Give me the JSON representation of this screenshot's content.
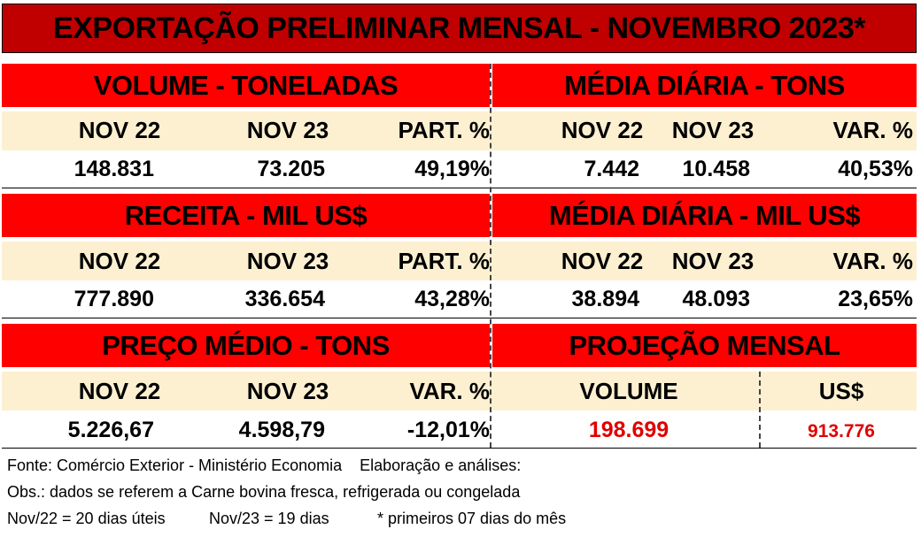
{
  "title": "EXPORTAÇÃO PRELIMINAR MENSAL  - NOVEMBRO 2023*",
  "sections": [
    {
      "left": {
        "heading": "VOLUME - TONELADAS",
        "headers": [
          "NOV 22",
          "NOV 23",
          "PART. %"
        ],
        "values": [
          "148.831",
          "73.205",
          "49,19%"
        ]
      },
      "right": {
        "heading": "MÉDIA DIÁRIA - TONS",
        "headers": [
          "NOV 22",
          "NOV 23",
          "VAR. %"
        ],
        "values": [
          "7.442",
          "10.458",
          "40,53%"
        ]
      }
    },
    {
      "left": {
        "heading": "RECEITA - MIL US$",
        "headers": [
          "NOV 22",
          "NOV 23",
          "PART. %"
        ],
        "values": [
          "777.890",
          "336.654",
          "43,28%"
        ]
      },
      "right": {
        "heading": "MÉDIA DIÁRIA - MIL US$",
        "headers": [
          "NOV 22",
          "NOV 23",
          "VAR. %"
        ],
        "values": [
          "38.894",
          "48.093",
          "23,65%"
        ]
      }
    },
    {
      "left": {
        "heading": "PREÇO MÉDIO - TONS",
        "headers": [
          "NOV 22",
          "NOV 23",
          "VAR. %"
        ],
        "values": [
          "5.226,67",
          "4.598,79",
          "-12,01%"
        ]
      },
      "right": {
        "heading": "PROJEÇÃO  MENSAL",
        "headers": [
          "VOLUME",
          "US$"
        ],
        "values": [
          "198.699",
          "913.776"
        ]
      }
    }
  ],
  "footer": {
    "line1": "Fonte: Comércio Exterior - Ministério Economia    Elaboração e análises:",
    "line2": "Obs.: dados se referem a Carne bovina fresca, refrigerada ou congelada",
    "line3a": "Nov/22 = 20 dias úteis",
    "line3b": "Nov/23 = 19 dias",
    "line3c": "* primeiros 07 dias do mês"
  },
  "colors": {
    "title_bg": "#c00000",
    "heading_bg": "#ff0000",
    "header_row_bg": "#fdf0d0",
    "projection_value": "#e00000"
  }
}
